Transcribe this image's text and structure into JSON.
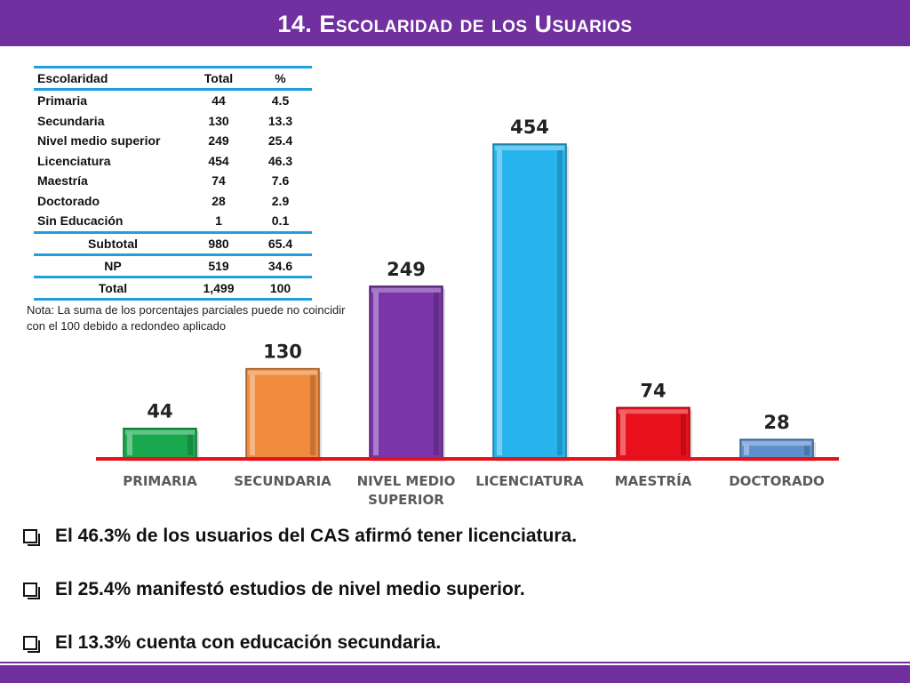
{
  "title": "14. Escolaridad de los Usuarios",
  "table": {
    "headers": [
      "Escolaridad",
      "Total",
      "%"
    ],
    "rows": [
      [
        "Primaria",
        "44",
        "4.5"
      ],
      [
        "Secundaria",
        "130",
        "13.3"
      ],
      [
        "Nivel medio superior",
        "249",
        "25.4"
      ],
      [
        "Licenciatura",
        "454",
        "46.3"
      ],
      [
        "Maestría",
        "74",
        "7.6"
      ],
      [
        "Doctorado",
        "28",
        "2.9"
      ],
      [
        "Sin Educación",
        "1",
        "0.1"
      ]
    ],
    "summary_rows": [
      [
        "Subtotal",
        "980",
        "65.4"
      ],
      [
        "NP",
        "519",
        "34.6"
      ],
      [
        "Total",
        "1,499",
        "100"
      ]
    ],
    "note": "Nota: La suma de los porcentajes parciales puede no coincidir con el 100 debido a redondeo aplicado"
  },
  "chart_data": {
    "type": "bar",
    "categories": [
      "PRIMARIA",
      "SECUNDARIA",
      "NIVEL MEDIO SUPERIOR",
      "LICENCIATURA",
      "MAESTRÍA",
      "DOCTORADO"
    ],
    "category_lines": [
      [
        "PRIMARIA"
      ],
      [
        "SECUNDARIA"
      ],
      [
        "NIVEL MEDIO",
        "SUPERIOR"
      ],
      [
        "LICENCIATURA"
      ],
      [
        "MAESTRÍA"
      ],
      [
        "DOCTORADO"
      ]
    ],
    "values": [
      44,
      130,
      249,
      454,
      74,
      28
    ],
    "data_labels": [
      "44",
      "130",
      "249",
      "454",
      "74",
      "28"
    ],
    "colors": [
      "#1aa84f",
      "#f08a3c",
      "#7a35a8",
      "#28b4ec",
      "#e8101a",
      "#5d8fcc"
    ],
    "baseline_color": "#e8101a",
    "grid": false,
    "legend": "none"
  },
  "bullets": [
    "El 46.3% de los usuarios del CAS afirmó tener licenciatura.",
    "El 25.4% manifestó estudios de nivel medio superior.",
    "El 13.3% cuenta con educación secundaria."
  ],
  "colors": {
    "brand": "#7030a0",
    "table_rule": "#1f9fe0"
  }
}
